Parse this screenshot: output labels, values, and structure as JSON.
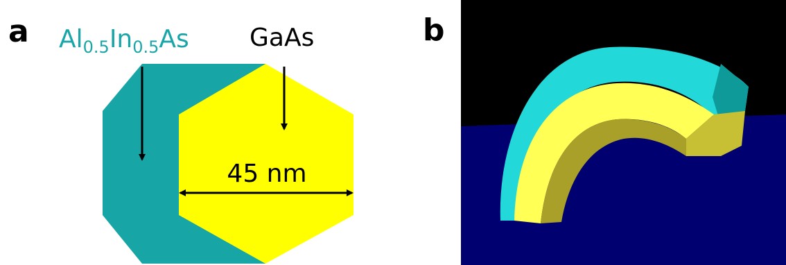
{
  "panel_a": {
    "label": "a",
    "shell_label": {
      "parts": [
        "Al",
        "0.5",
        "In",
        "0.5",
        "As"
      ]
    },
    "core_label": "GaAs",
    "dimension": "45 nm"
  },
  "panel_b": {
    "label": "b"
  }
}
